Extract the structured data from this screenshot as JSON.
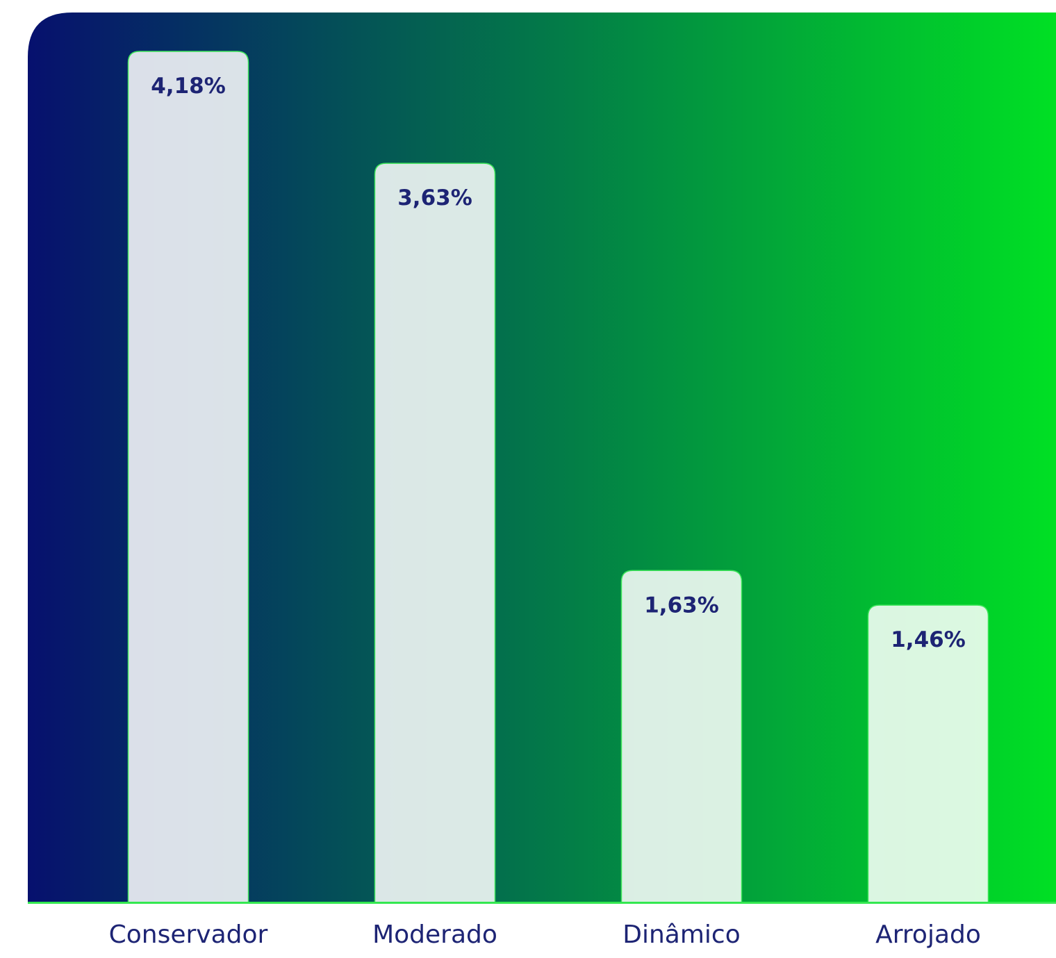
{
  "colors": {
    "gradient_start": "#06106e",
    "gradient_end": "#00e024",
    "bar_fill": "#ffffff",
    "bar_border": "#3ee65a",
    "baseline": "#33e850",
    "text": "#1d2474"
  },
  "chart_data": {
    "type": "bar",
    "categories": [
      "Conservador",
      "Moderado",
      "Dinâmico",
      "Arrojado"
    ],
    "values": [
      4.18,
      3.63,
      1.63,
      1.46
    ],
    "value_labels": [
      "4,18%",
      "3,63%",
      "1,63%",
      "1,46%"
    ],
    "ylim": [
      0,
      4.18
    ],
    "grid": false,
    "legend": "none"
  }
}
